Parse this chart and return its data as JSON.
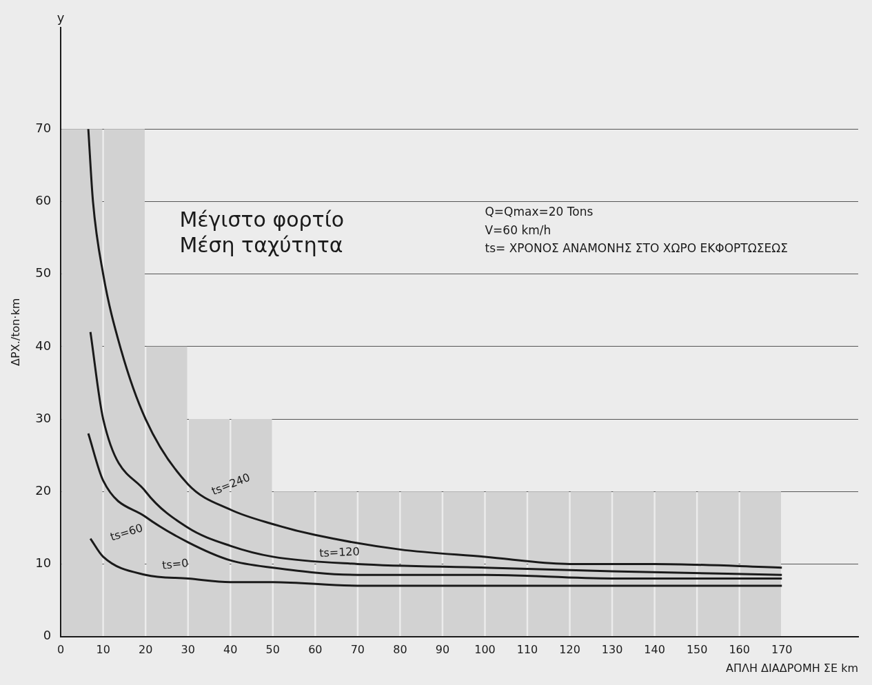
{
  "chart_data": {
    "type": "histogram",
    "xlabel": "ΑΠΛΗ ΔΙΑΔΡΟΜΗ ΣΕ km",
    "ylabel": "ΔΡΧ./ton·km",
    "bins": [
      0,
      10,
      20,
      30,
      40,
      50,
      60,
      70,
      80,
      90,
      100,
      110,
      120,
      130,
      140,
      150,
      160,
      170
    ],
    "series": [
      {
        "color": "#d2d2d2",
        "values": [
          70,
          70,
          40,
          30,
          30,
          20,
          20,
          20,
          20,
          20,
          20,
          20,
          20,
          20,
          20,
          20,
          20
        ]
      },
      {
        "name": "ts=240",
        "type": "line",
        "color": "#1a1a1a",
        "x": [
          6.5,
          7.6,
          10,
          14,
          20,
          30,
          40,
          50,
          60,
          80,
          100,
          120,
          140,
          170
        ],
        "values": [
          70,
          60,
          50,
          40,
          30,
          21,
          17.5,
          15.5,
          14,
          12,
          11,
          10,
          10,
          9.5
        ]
      },
      {
        "name": "ts=120",
        "type": "line",
        "color": "#1a1a1a",
        "x": [
          7,
          10,
          20,
          30,
          40,
          50,
          70,
          100,
          130,
          170
        ],
        "values": [
          42,
          30,
          20,
          15,
          12.5,
          11,
          10,
          9.5,
          9,
          8.5
        ]
      },
      {
        "name": "ts=60",
        "type": "line",
        "color": "#1a1a1a",
        "x": [
          6.5,
          10,
          20,
          30,
          40,
          50,
          70,
          100,
          130,
          170
        ],
        "values": [
          28,
          21.5,
          16.5,
          13,
          10.5,
          9.5,
          8.5,
          8.5,
          8,
          8
        ]
      },
      {
        "name": "ts=0",
        "type": "line",
        "color": "#1a1a1a",
        "x": [
          7,
          10,
          20,
          30,
          40,
          50,
          70,
          100,
          130,
          170
        ],
        "values": [
          13.5,
          11,
          8.5,
          8,
          7.5,
          7.5,
          7,
          7,
          7,
          7
        ]
      }
    ],
    "xlim": [
      0,
      188
    ],
    "ylim": [
      0,
      84
    ],
    "xticks": [
      0,
      10,
      20,
      30,
      40,
      50,
      60,
      70,
      80,
      90,
      100,
      110,
      120,
      130,
      140,
      150,
      160,
      170
    ],
    "yticks": [
      0,
      10,
      20,
      30,
      40,
      50,
      60,
      70
    ],
    "grid": "y",
    "legend": false,
    "marker": "none",
    "line_style": "solid",
    "annotations": [
      "y",
      "Μέγιστο φορτίο",
      "Μέση ταχύτητα",
      "Q=Qmax=20 Tons",
      "V=60 km/h",
      "ts= ΧΡΟΝΟΣ ΑΝΑΜΟΝΗΣ ΣΤΟ ΧΩΡΟ ΕΚΦΟΡΤΩΣΕΩΣ"
    ]
  }
}
